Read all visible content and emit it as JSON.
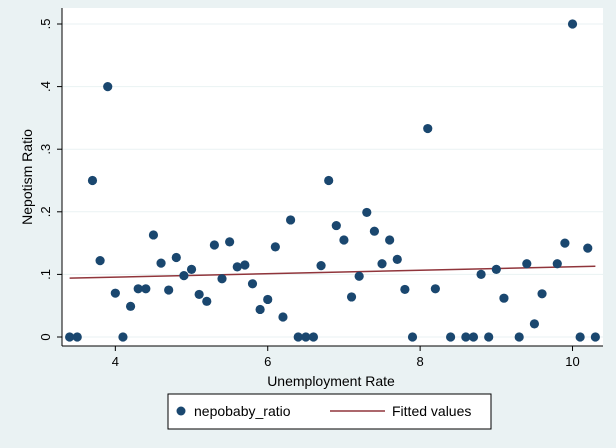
{
  "colors": {
    "outer_background": "#eaf2f3",
    "plot_background": "#ffffff",
    "marker": "#1a476f",
    "fit_line": "#90353b",
    "gridline": "#eaf2f3"
  },
  "chart_data": {
    "type": "scatter",
    "xlabel": "Unemployment Rate",
    "ylabel": "Nepotism Ratio",
    "xlim": [
      3.3,
      10.4
    ],
    "ylim": [
      0,
      0.5
    ],
    "x_ticks": [
      4,
      6,
      8,
      10
    ],
    "x_tick_labels": [
      "4",
      "6",
      "8",
      "10"
    ],
    "y_ticks": [
      0,
      0.1,
      0.2,
      0.3,
      0.4,
      0.5
    ],
    "y_tick_labels": [
      "0",
      ".1",
      ".2",
      ".3",
      ".4",
      ".5"
    ],
    "grid": "horizontal",
    "legend_position": "bottom",
    "series": [
      {
        "name": "nepobaby_ratio",
        "kind": "scatter",
        "points": [
          [
            3.4,
            0
          ],
          [
            3.5,
            0
          ],
          [
            3.7,
            0.25
          ],
          [
            3.8,
            0.122
          ],
          [
            3.9,
            0.4
          ],
          [
            4.0,
            0.07
          ],
          [
            4.1,
            0
          ],
          [
            4.2,
            0.049
          ],
          [
            4.3,
            0.077
          ],
          [
            4.4,
            0.077
          ],
          [
            4.5,
            0.163
          ],
          [
            4.6,
            0.118
          ],
          [
            4.7,
            0.075
          ],
          [
            4.8,
            0.127
          ],
          [
            4.9,
            0.098
          ],
          [
            5.0,
            0.108
          ],
          [
            5.1,
            0.068
          ],
          [
            5.2,
            0.057
          ],
          [
            5.3,
            0.147
          ],
          [
            5.4,
            0.093
          ],
          [
            5.5,
            0.152
          ],
          [
            5.6,
            0.112
          ],
          [
            5.7,
            0.115
          ],
          [
            5.8,
            0.085
          ],
          [
            5.9,
            0.044
          ],
          [
            6.0,
            0.06
          ],
          [
            6.1,
            0.144
          ],
          [
            6.2,
            0.032
          ],
          [
            6.3,
            0.187
          ],
          [
            6.4,
            0
          ],
          [
            6.5,
            0
          ],
          [
            6.6,
            0
          ],
          [
            6.7,
            0.114
          ],
          [
            6.8,
            0.25
          ],
          [
            6.9,
            0.178
          ],
          [
            7.0,
            0.155
          ],
          [
            7.1,
            0.064
          ],
          [
            7.2,
            0.097
          ],
          [
            7.3,
            0.199
          ],
          [
            7.4,
            0.169
          ],
          [
            7.5,
            0.117
          ],
          [
            7.6,
            0.155
          ],
          [
            7.7,
            0.124
          ],
          [
            7.8,
            0.076
          ],
          [
            7.9,
            0
          ],
          [
            8.1,
            0.333
          ],
          [
            8.2,
            0.077
          ],
          [
            8.4,
            0
          ],
          [
            8.6,
            0
          ],
          [
            8.7,
            0
          ],
          [
            8.8,
            0.1
          ],
          [
            8.9,
            0
          ],
          [
            9.0,
            0.108
          ],
          [
            9.1,
            0.062
          ],
          [
            9.3,
            0
          ],
          [
            9.4,
            0.117
          ],
          [
            9.5,
            0.021
          ],
          [
            9.6,
            0.069
          ],
          [
            9.8,
            0.117
          ],
          [
            9.9,
            0.15
          ],
          [
            10.0,
            0.5
          ],
          [
            10.1,
            0
          ],
          [
            10.2,
            0.142
          ],
          [
            10.3,
            0
          ]
        ]
      },
      {
        "name": "Fitted values",
        "kind": "line",
        "points": [
          [
            3.4,
            0.094
          ],
          [
            10.3,
            0.113
          ]
        ]
      }
    ]
  }
}
